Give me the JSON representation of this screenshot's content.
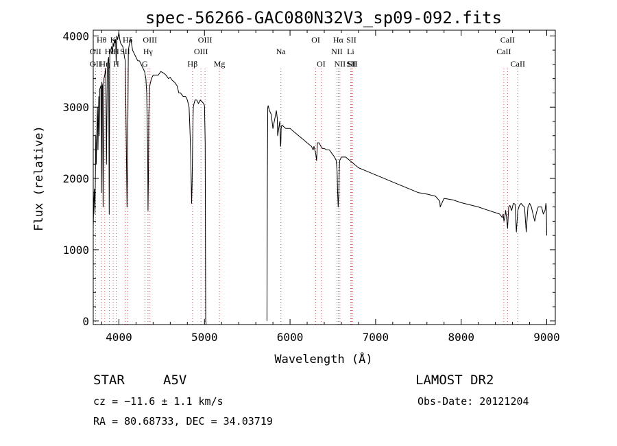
{
  "chart_data": {
    "type": "line",
    "title": "spec-56266-GAC080N32V3_sp09-092.fits",
    "xlabel": "Wavelength (Å)",
    "ylabel": "Flux (relative)",
    "xlim": [
      3700,
      9100
    ],
    "ylim": [
      -50,
      4080
    ],
    "xticks": [
      4000,
      5000,
      6000,
      7000,
      8000,
      9000
    ],
    "yticks": [
      0,
      1000,
      2000,
      3000,
      4000
    ],
    "grid": false,
    "series": [
      {
        "segment": "blue",
        "x": [
          3700,
          3705,
          3712,
          3720,
          3725,
          3730,
          3735,
          3745,
          3750,
          3755,
          3765,
          3770,
          3775,
          3790,
          3795,
          3800,
          3808,
          3815,
          3825,
          3835,
          3840,
          3847,
          3855,
          3865,
          3872,
          3880,
          3887,
          3893,
          3905,
          3915,
          3925,
          3932,
          3940,
          3948,
          3955,
          3962,
          3968,
          3975,
          3985,
          4000,
          4010,
          4020,
          4030,
          4045,
          4055,
          4065,
          4075,
          4095,
          4102,
          4110,
          4125,
          4140,
          4160,
          4180,
          4200,
          4220,
          4240,
          4260,
          4280,
          4300,
          4315,
          4325,
          4330,
          4336,
          4340,
          4345,
          4350,
          4360,
          4380,
          4400,
          4430,
          4460,
          4490,
          4520,
          4550,
          4580,
          4600,
          4620,
          4650,
          4680,
          4700,
          4720,
          4750,
          4780,
          4800,
          4820,
          4830,
          4840,
          4845,
          4850,
          4855,
          4861,
          4866,
          4870,
          4878,
          4890,
          4910,
          4930,
          4950,
          4970,
          4990,
          5000,
          5008,
          5012,
          5015,
          5020
        ],
        "y": [
          1300,
          1600,
          1850,
          1500,
          2000,
          2600,
          2200,
          2850,
          3000,
          2400,
          3150,
          2600,
          3250,
          3300,
          1800,
          3350,
          3300,
          1600,
          3400,
          3450,
          3500,
          3550,
          2200,
          3600,
          3650,
          3700,
          1500,
          3750,
          3800,
          3850,
          3750,
          3900,
          3850,
          3950,
          3900,
          3950,
          3600,
          4000,
          3950,
          4050,
          3950,
          3900,
          3880,
          3850,
          3800,
          3700,
          3650,
          1600,
          2300,
          3800,
          3900,
          3950,
          3800,
          3750,
          3700,
          3650,
          3650,
          3600,
          3550,
          3500,
          3400,
          3200,
          2800,
          2400,
          1550,
          2000,
          2900,
          3300,
          3400,
          3450,
          3450,
          3450,
          3500,
          3480,
          3450,
          3400,
          3420,
          3380,
          3350,
          3300,
          3200,
          3200,
          3150,
          3150,
          3100,
          3000,
          2700,
          2300,
          1950,
          1650,
          1900,
          2400,
          2800,
          3000,
          3050,
          3100,
          3100,
          3050,
          3100,
          3080,
          3050,
          3020,
          2500,
          800,
          0,
          -50
        ]
      },
      {
        "segment": "red",
        "x": [
          5730,
          5735,
          5740,
          5745,
          5760,
          5780,
          5800,
          5840,
          5850,
          5855,
          5880,
          5889,
          5893,
          5896,
          5905,
          5950,
          6000,
          6050,
          6100,
          6150,
          6200,
          6250,
          6270,
          6280,
          6300,
          6310,
          6320,
          6340,
          6360,
          6380,
          6400,
          6430,
          6460,
          6490,
          6520,
          6540,
          6550,
          6556,
          6563,
          6570,
          6575,
          6580,
          6600,
          6620,
          6650,
          6700,
          6750,
          6800,
          6900,
          7000,
          7100,
          7200,
          7300,
          7400,
          7500,
          7600,
          7700,
          7750,
          7755,
          7800,
          7900,
          8000,
          8100,
          8200,
          8300,
          8400,
          8450,
          8480,
          8490,
          8500,
          8510,
          8520,
          8530,
          8542,
          8555,
          8570,
          8590,
          8610,
          8630,
          8645,
          8662,
          8680,
          8700,
          8720,
          8740,
          8760,
          8780,
          8800,
          8820,
          8840,
          8860,
          8880,
          8900,
          8920,
          8940,
          8960,
          8980,
          8990,
          8995,
          9000
        ],
        "y": [
          0,
          2000,
          3000,
          3020,
          2950,
          2900,
          2700,
          2950,
          2850,
          2600,
          2800,
          2450,
          2500,
          2700,
          2750,
          2700,
          2700,
          2650,
          2600,
          2550,
          2500,
          2450,
          2400,
          2450,
          2350,
          2250,
          2500,
          2500,
          2450,
          2420,
          2420,
          2400,
          2400,
          2350,
          2300,
          2250,
          2100,
          1800,
          1600,
          1800,
          2100,
          2250,
          2300,
          2300,
          2300,
          2250,
          2200,
          2150,
          2100,
          2050,
          2000,
          1950,
          1900,
          1850,
          1800,
          1780,
          1750,
          1680,
          1600,
          1720,
          1700,
          1660,
          1630,
          1600,
          1560,
          1520,
          1500,
          1450,
          1500,
          1400,
          1450,
          1550,
          1450,
          1300,
          1600,
          1620,
          1550,
          1650,
          1640,
          1250,
          1550,
          1620,
          1650,
          1620,
          1600,
          1250,
          1600,
          1650,
          1600,
          1500,
          1400,
          1520,
          1600,
          1600,
          1600,
          1500,
          1550,
          1650,
          1600,
          1200
        ]
      }
    ],
    "line_marks": [
      {
        "labels": [
          {
            "text": "OII",
            "row": 1
          },
          {
            "text": "OII",
            "row": 2
          }
        ],
        "x": 3727
      },
      {
        "labels": [
          {
            "text": "Hθ",
            "row": 0
          }
        ],
        "x": 3798
      },
      {
        "labels": [
          {
            "text": "Hη",
            "row": 2
          }
        ],
        "x": 3835
      },
      {
        "labels": [
          {
            "text": "Hε",
            "row": 1
          }
        ],
        "x": 3889
      },
      {
        "labels": [
          {
            "text": "K",
            "row": 0
          }
        ],
        "x": 3933
      },
      {
        "labels": [
          {
            "text": "H",
            "row": 1
          },
          {
            "text": "H",
            "row": 2
          }
        ],
        "x": 3968
      },
      {
        "labels": [
          {
            "text": "SII",
            "row": 1
          }
        ],
        "x": 4072
      },
      {
        "labels": [
          {
            "text": "Hδ",
            "row": 0
          }
        ],
        "x": 4102
      },
      {
        "labels": [
          {
            "text": "G",
            "row": 2
          }
        ],
        "x": 4304
      },
      {
        "labels": [
          {
            "text": "Hγ",
            "row": 1
          }
        ],
        "x": 4340
      },
      {
        "labels": [
          {
            "text": "OIII",
            "row": 0
          }
        ],
        "x": 4363
      },
      {
        "labels": [
          {
            "text": "Hβ",
            "row": 2
          }
        ],
        "x": 4861
      },
      {
        "labels": [
          {
            "text": "OIII",
            "row": 1
          }
        ],
        "x": 4959
      },
      {
        "labels": [
          {
            "text": "OIII",
            "row": 0
          }
        ],
        "x": 5007
      },
      {
        "labels": [
          {
            "text": "Mg",
            "row": 2
          }
        ],
        "x": 5175
      },
      {
        "labels": [
          {
            "text": "Na",
            "row": 1
          }
        ],
        "x": 5893
      },
      {
        "labels": [
          {
            "text": "OI",
            "row": 0
          }
        ],
        "x": 6300
      },
      {
        "labels": [
          {
            "text": "OI",
            "row": 2
          }
        ],
        "x": 6363
      },
      {
        "labels": [
          {
            "text": "NII",
            "row": 1
          }
        ],
        "x": 6548
      },
      {
        "labels": [
          {
            "text": "Hα",
            "row": 0
          }
        ],
        "x": 6563
      },
      {
        "labels": [
          {
            "text": "NII",
            "row": 2
          }
        ],
        "x": 6583
      },
      {
        "labels": [
          {
            "text": "Li",
            "row": 1
          }
        ],
        "x": 6708
      },
      {
        "labels": [
          {
            "text": "SII",
            "row": 0
          },
          {
            "text": "SII",
            "row": 2
          }
        ],
        "x": 6716
      },
      {
        "labels": [
          {
            "text": "SII",
            "row": 2
          }
        ],
        "x": 6731
      },
      {
        "labels": [
          {
            "text": "CaII",
            "row": 1
          }
        ],
        "x": 8498
      },
      {
        "labels": [
          {
            "text": "CaII",
            "row": 0
          }
        ],
        "x": 8542
      },
      {
        "labels": [
          {
            "text": "CaII",
            "row": 2
          }
        ],
        "x": 8662
      }
    ]
  },
  "info": {
    "object_class": "STAR",
    "subclass": "A5V",
    "survey": "LAMOST DR2",
    "redshift": "cz = −11.6 ± 1.1 km/s",
    "obs_date": "Obs-Date: 20121204",
    "coords": "RA =  80.68733, DEC =  34.03719"
  }
}
